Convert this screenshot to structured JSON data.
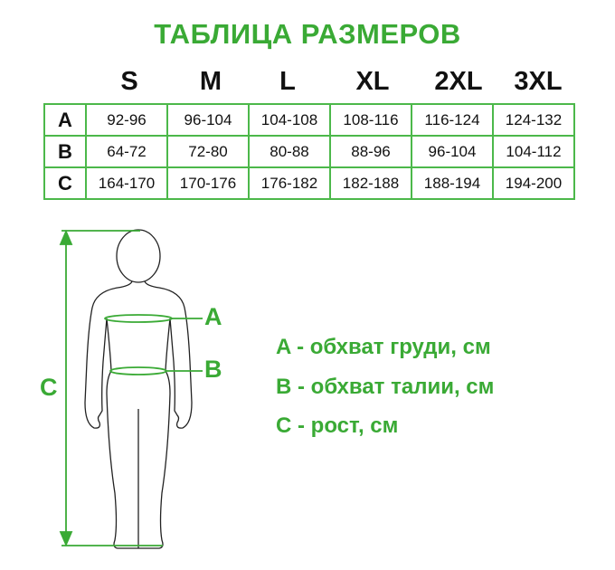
{
  "title": "ТАБЛИЦА РАЗМЕРОВ",
  "sizes": [
    "S",
    "M",
    "L",
    "XL",
    "2XL",
    "3XL"
  ],
  "rows": [
    {
      "label": "A",
      "values": [
        "92-96",
        "96-104",
        "104-108",
        "108-116",
        "116-124",
        "124-132"
      ]
    },
    {
      "label": "B",
      "values": [
        "64-72",
        "72-80",
        "80-88",
        "88-96",
        "96-104",
        "104-112"
      ]
    },
    {
      "label": "C",
      "values": [
        "164-170",
        "170-176",
        "176-182",
        "182-188",
        "188-194",
        "194-200"
      ]
    }
  ],
  "figure": {
    "label_a": "A",
    "label_b": "B",
    "label_c": "C",
    "accent_color": "#3aaa35"
  },
  "legend": [
    "A - обхват груди, см",
    "B - обхват талии, см",
    "C - рост, см"
  ]
}
